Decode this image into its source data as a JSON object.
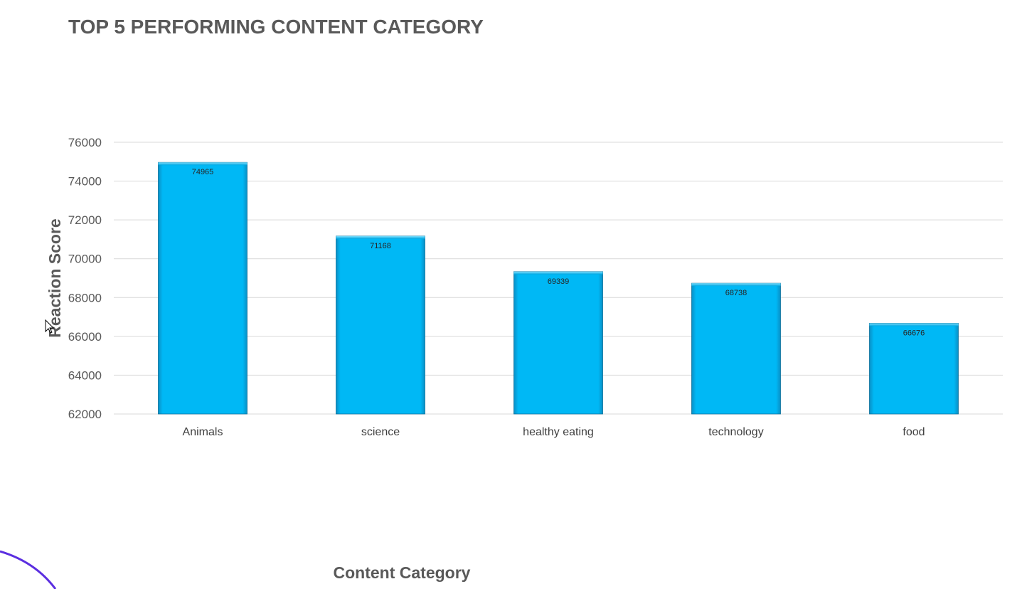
{
  "chart_data": {
    "type": "bar",
    "title": "TOP 5 PERFORMING CONTENT CATEGORY",
    "xlabel": "Content Category",
    "ylabel": "Reaction Score",
    "categories": [
      "Animals",
      "science",
      "healthy eating",
      "technology",
      "food"
    ],
    "values": [
      74965,
      71168,
      69339,
      68738,
      66676
    ],
    "data_labels": [
      "74965",
      "71168",
      "69339",
      "68738",
      "66676"
    ],
    "yticks": [
      62000,
      64000,
      66000,
      68000,
      70000,
      72000,
      74000,
      76000
    ],
    "ylim": [
      62000,
      76000
    ],
    "grid": true,
    "legend": "none",
    "colors": {
      "bar": "#00B8F5",
      "bar_edge": "#0A6E99",
      "grid": "#D9D9D9",
      "text": "#595959"
    }
  }
}
